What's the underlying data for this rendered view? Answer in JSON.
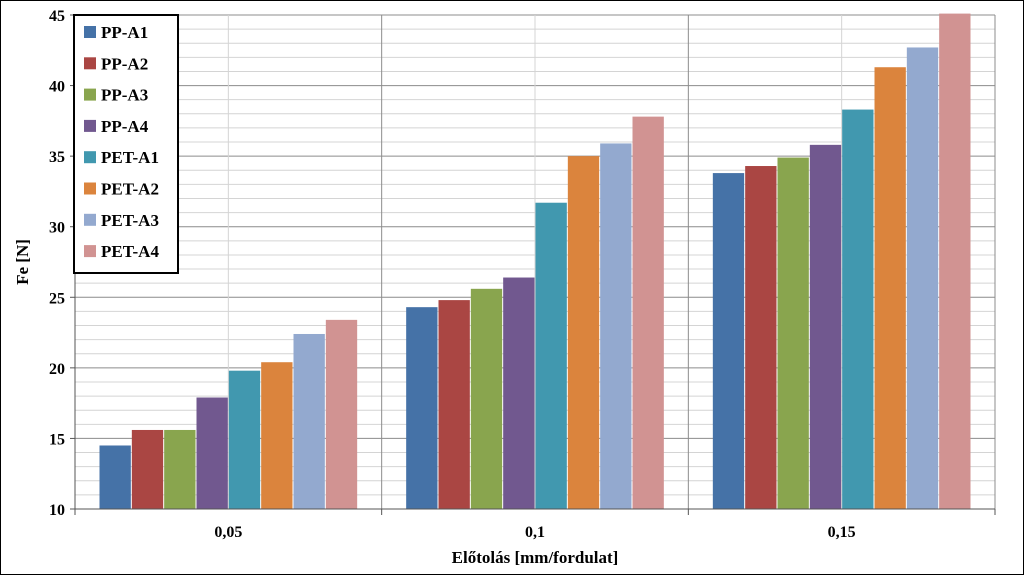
{
  "chart_data": {
    "type": "bar",
    "title": "",
    "xlabel": "Előtolás [mm/fordulat]",
    "ylabel": "Fe [N]",
    "ylim": [
      10,
      45
    ],
    "yticks": [
      10,
      15,
      20,
      25,
      30,
      35,
      40,
      45
    ],
    "grid": true,
    "legend_position": "top-left",
    "categories": [
      "0,05",
      "0,1",
      "0,15"
    ],
    "series": [
      {
        "name": "PP-A1",
        "color": "#4572a7",
        "values": [
          14.5,
          24.3,
          33.8
        ]
      },
      {
        "name": "PP-A2",
        "color": "#aa4643",
        "values": [
          15.6,
          24.8,
          34.3
        ]
      },
      {
        "name": "PP-A3",
        "color": "#89a54e",
        "values": [
          15.6,
          25.6,
          34.9
        ]
      },
      {
        "name": "PP-A4",
        "color": "#71588f",
        "values": [
          17.9,
          26.4,
          35.8
        ]
      },
      {
        "name": "PET-A1",
        "color": "#4198af",
        "values": [
          19.8,
          31.7,
          38.3
        ]
      },
      {
        "name": "PET-A2",
        "color": "#db843d",
        "values": [
          20.4,
          35.0,
          41.3
        ]
      },
      {
        "name": "PET-A3",
        "color": "#93a9cf",
        "values": [
          22.4,
          35.9,
          42.7
        ]
      },
      {
        "name": "PET-A4",
        "color": "#d19392",
        "values": [
          23.4,
          37.8,
          45.1
        ]
      }
    ]
  }
}
